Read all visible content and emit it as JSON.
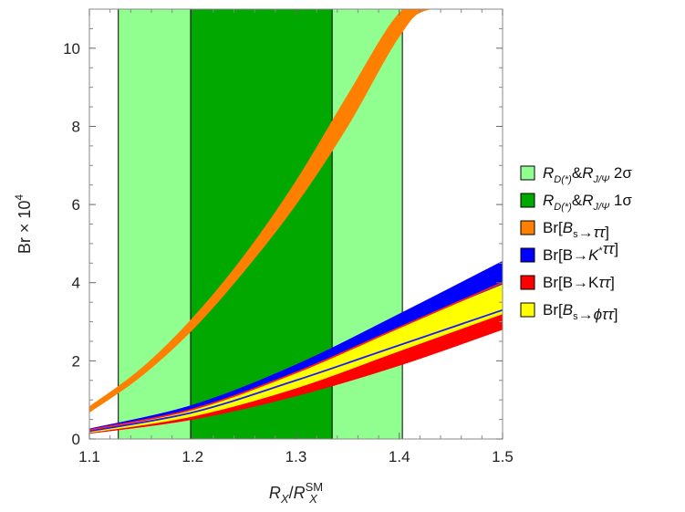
{
  "chart_data": {
    "type": "area",
    "xlim": [
      1.1,
      1.5
    ],
    "ylim": [
      0,
      11
    ],
    "x_ticks": [
      "1.1",
      "1.2",
      "1.3",
      "1.4",
      "1.5"
    ],
    "y_ticks": [
      "0",
      "2",
      "4",
      "6",
      "8",
      "10"
    ],
    "xlabel": {
      "main": "R",
      "main_sub": "X",
      "sep": "/",
      "den": "R",
      "den_sub": "X",
      "den_sup": "SM"
    },
    "ylabel": {
      "main": "Br × 10",
      "sup": "4"
    },
    "legend_position": "right",
    "regions": [
      {
        "name": "RD&RJpsi 2σ",
        "x_range": [
          1.128,
          1.403
        ],
        "color": "#90ff90"
      },
      {
        "name": "RD&RJpsi 1σ",
        "x_range": [
          1.198,
          1.335
        ],
        "color": "#00a800"
      }
    ],
    "bands": [
      {
        "name": "Br[Bs→ττ]",
        "color": "#ff7f00",
        "x": [
          1.1,
          1.15,
          1.2,
          1.25,
          1.3,
          1.35,
          1.4,
          1.43,
          1.5
        ],
        "lower": [
          0.68,
          1.6,
          2.8,
          4.3,
          6.0,
          8.0,
          10.3,
          11.0,
          11.0
        ],
        "upper": [
          0.83,
          1.8,
          3.1,
          4.7,
          6.6,
          8.8,
          10.9,
          11.0,
          11.0
        ]
      },
      {
        "name": "Br[B→K*ττ]",
        "color": "#0000ff",
        "x": [
          1.1,
          1.2,
          1.3,
          1.4,
          1.5
        ],
        "lower": [
          0.2,
          0.75,
          1.65,
          2.8,
          3.95
        ],
        "upper": [
          0.26,
          0.87,
          1.9,
          3.2,
          4.55
        ]
      },
      {
        "name": "Br[B→Kττ]",
        "color": "#ff0000",
        "x": [
          1.1,
          1.2,
          1.3,
          1.4,
          1.5
        ],
        "lower": [
          0.14,
          0.5,
          1.1,
          1.88,
          2.8
        ],
        "upper": [
          0.18,
          0.62,
          1.35,
          2.3,
          3.35
        ]
      },
      {
        "name": "Br[Bs→φττ]",
        "color": "#ffff00",
        "x": [
          1.1,
          1.2,
          1.3,
          1.4,
          1.5
        ],
        "lower": [
          0.16,
          0.58,
          1.3,
          2.25,
          3.2
        ],
        "upper": [
          0.22,
          0.76,
          1.68,
          2.85,
          3.95
        ]
      }
    ],
    "lines": [
      {
        "name": "blue-central",
        "color": "#1a1aff",
        "x": [
          1.1,
          1.2,
          1.3,
          1.4,
          1.5
        ],
        "y": [
          0.2,
          0.68,
          1.5,
          2.4,
          3.3
        ]
      },
      {
        "name": "red-upper-edge",
        "color": "#ff2020",
        "x": [
          1.1,
          1.2,
          1.3,
          1.4,
          1.5
        ],
        "y": [
          0.23,
          0.76,
          1.7,
          2.85,
          4.0
        ]
      }
    ],
    "legend": [
      {
        "symbol": "R",
        "sub1": "D(*)",
        "mid": "&",
        "symbol2": "R",
        "sub2": "J/Ψ",
        "tail": " 2σ",
        "color": "#90ff90"
      },
      {
        "symbol": "R",
        "sub1": "D(*)",
        "mid": "&",
        "symbol2": "R",
        "sub2": "J/Ψ",
        "tail": " 1σ",
        "color": "#00a800"
      },
      {
        "pre": "Br[",
        "i1": "B",
        "s1": "s",
        "mid": "→",
        "i2": "ττ",
        "post": "]",
        "color": "#ff7f00"
      },
      {
        "pre": "Br[B→",
        "i1": "K",
        "sup1": "*",
        "i2": "ττ",
        "post": "]",
        "color": "#0000ff"
      },
      {
        "pre": "Br[B→K",
        "i2": "ττ",
        "post": "]",
        "color": "#ff0000"
      },
      {
        "pre": "Br[",
        "i1": "B",
        "s1": "s",
        "mid": "→",
        "i2": "ϕττ",
        "post": "]",
        "color": "#ffff00"
      }
    ]
  }
}
